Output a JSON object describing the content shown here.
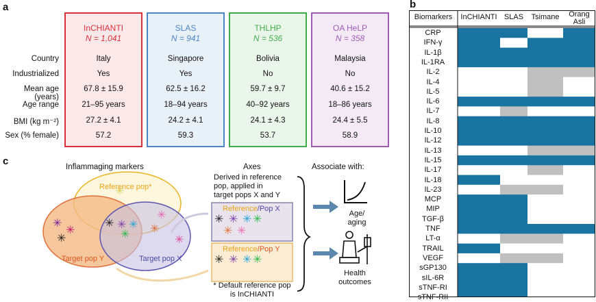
{
  "panel_a": {
    "letter": "a",
    "cohorts": [
      {
        "name": "InCHIANTI",
        "n": "N = 1,041",
        "border": "#d7303a",
        "fill": "#fbe9ea",
        "text": "#d7303a",
        "country": "Italy",
        "industrialized": "Yes",
        "age": "67.8 ± 15.9",
        "range": "21–95 years",
        "bmi": "27.2 ± 4.1",
        "sex": "57.2"
      },
      {
        "name": "SLAS",
        "n": "N = 941",
        "border": "#4a86c5",
        "fill": "#e8f0f8",
        "text": "#4a86c5",
        "country": "Singapore",
        "industrialized": "Yes",
        "age": "62.5 ± 16.2",
        "range": "18–94 years",
        "bmi": "24.2 ± 4.1",
        "sex": "59.3"
      },
      {
        "name": "THLHP",
        "n": "N = 536",
        "border": "#3fae49",
        "fill": "#eaf6ea",
        "text": "#3fae49",
        "country": "Bolivia",
        "industrialized": "No",
        "age": "59.7 ± 9.7",
        "range": "40–92 years",
        "bmi": "24.1 ± 4.3",
        "sex": "53.7"
      },
      {
        "name": "OA HeLP",
        "n": "N = 358",
        "border": "#a05bb5",
        "fill": "#f3eaf6",
        "text": "#a05bb5",
        "country": "Malaysia",
        "industrialized": "No",
        "age": "40.6 ± 15.2",
        "range": "18–86 years",
        "bmi": "24.4 ± 5.5",
        "sex": "58.9"
      }
    ],
    "row_labels": {
      "country": "Country",
      "industrialized": "Industrialized",
      "age": "Mean age (years)",
      "range": "Age range",
      "bmi": "BMI (kg m⁻²)",
      "sex": "Sex (% female)"
    }
  },
  "panel_b": {
    "letter": "b",
    "headers": [
      "Biomarkers",
      "InCHIANTI",
      "SLAS",
      "Tsimane",
      "Orang\nAsli"
    ],
    "colors": {
      "present": "#1a74a2",
      "partial": "#c0c0c0",
      "absent": "#ffffff"
    },
    "rows": [
      {
        "name": "CRP",
        "v": [
          "P",
          "P",
          "",
          "P"
        ]
      },
      {
        "name": "IFN-γ",
        "v": [
          "P",
          "",
          "P",
          "P"
        ]
      },
      {
        "name": "IL-1β",
        "v": [
          "P",
          "P",
          "P",
          "P"
        ]
      },
      {
        "name": "IL-1RA",
        "v": [
          "P",
          "P",
          "P",
          "P"
        ]
      },
      {
        "name": "IL-2",
        "v": [
          "",
          "",
          "G",
          "G"
        ]
      },
      {
        "name": "IL-4",
        "v": [
          "",
          "",
          "G",
          ""
        ]
      },
      {
        "name": "IL-5",
        "v": [
          "",
          "",
          "G",
          ""
        ]
      },
      {
        "name": "IL-6",
        "v": [
          "P",
          "P",
          "P",
          "P"
        ]
      },
      {
        "name": "IL-7",
        "v": [
          "",
          "G",
          "",
          ""
        ]
      },
      {
        "name": "IL-8",
        "v": [
          "P",
          "P",
          "P",
          "P"
        ]
      },
      {
        "name": "IL-10",
        "v": [
          "P",
          "P",
          "P",
          "P"
        ]
      },
      {
        "name": "IL-12",
        "v": [
          "P",
          "P",
          "P",
          "P"
        ]
      },
      {
        "name": "IL-13",
        "v": [
          "",
          "",
          "G",
          "G"
        ]
      },
      {
        "name": "IL-15",
        "v": [
          "P",
          "P",
          "P",
          "P"
        ]
      },
      {
        "name": "IL-17",
        "v": [
          "",
          "",
          "G",
          ""
        ]
      },
      {
        "name": "IL-18",
        "v": [
          "P",
          "",
          "",
          ""
        ]
      },
      {
        "name": "IL-23",
        "v": [
          "",
          "G",
          "G",
          ""
        ]
      },
      {
        "name": "MCP",
        "v": [
          "P",
          "P",
          "",
          ""
        ]
      },
      {
        "name": "MIP",
        "v": [
          "P",
          "P",
          "",
          ""
        ]
      },
      {
        "name": "TGF-β",
        "v": [
          "P",
          "P",
          "",
          ""
        ]
      },
      {
        "name": "TNF",
        "v": [
          "P",
          "P",
          "P",
          "P"
        ]
      },
      {
        "name": "LT-α",
        "v": [
          "",
          "G",
          "G",
          ""
        ]
      },
      {
        "name": "TRAIL",
        "v": [
          "P",
          "",
          "",
          ""
        ]
      },
      {
        "name": "VEGF",
        "v": [
          "",
          "G",
          "G",
          ""
        ]
      },
      {
        "name": "sGP130",
        "v": [
          "P",
          "P",
          "",
          ""
        ]
      },
      {
        "name": "sIL-6R",
        "v": [
          "P",
          "P",
          "",
          ""
        ]
      },
      {
        "name": "sTNF-RI",
        "v": [
          "P",
          "P",
          "",
          ""
        ]
      },
      {
        "name": "sTNF-RII",
        "v": [
          "P",
          "P",
          "",
          ""
        ]
      }
    ]
  },
  "panel_c": {
    "letter": "c",
    "inflammaging_title": "Inflammaging markers",
    "reference_pop": "Reference pop*",
    "target_y": "Target pop Y",
    "target_x": "Target pop X",
    "axes_title": "Axes",
    "axes_desc": [
      "Derived in reference",
      "pop, applied in",
      "target pops X and Y"
    ],
    "box1_label_a": "Reference",
    "box1_label_b": "/Pop X",
    "box2_label_a": "Reference",
    "box2_label_b": "/Pop Y",
    "footnote": [
      "* Default reference pop",
      "is InCHIANTI"
    ],
    "associate_title": "Associate with:",
    "outcome1": [
      "Age/",
      "aging"
    ],
    "outcome2": [
      "Health",
      "outcomes"
    ],
    "colors": {
      "ref": "#e8b422",
      "target_y": "#e0703a",
      "target_x": "#5a55b0",
      "box1": "#8e7fae",
      "box2": "#e8b86a",
      "arrow": "#5b87ad"
    }
  }
}
